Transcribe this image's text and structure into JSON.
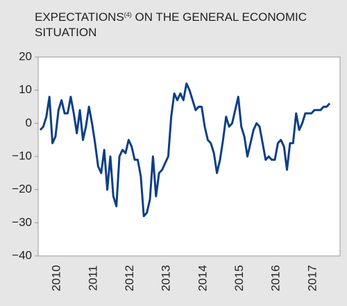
{
  "chart_data": {
    "type": "line",
    "title": "EXPECTATIONS",
    "title_note": "(4)",
    "title_rest": "ON THE GENERAL ECONOMIC SITUATION",
    "year_labels": [
      "2010",
      "2011",
      "2012",
      "2013",
      "2014",
      "2015",
      "2016",
      "2017"
    ],
    "series": [
      {
        "color": "#0d3f85",
        "values": [
          -2,
          -1,
          2,
          8,
          -6,
          -4,
          4,
          7,
          3,
          3,
          8,
          3,
          -3,
          4,
          -5,
          -1,
          5,
          0,
          -6,
          -13,
          -15,
          -8,
          -20,
          -10,
          -22,
          -25,
          -10,
          -8,
          -9,
          -5,
          -7,
          -11,
          -11,
          -16,
          -28,
          -27,
          -23,
          -10,
          -22,
          -15,
          -14,
          -12,
          -10,
          2,
          9,
          7,
          9,
          7,
          12,
          10,
          7,
          4,
          5,
          5,
          -1,
          -5,
          -6,
          -9,
          -15,
          -11,
          -5,
          2,
          -1,
          0,
          4,
          8,
          -1,
          -4,
          -10,
          -6,
          -2,
          0,
          -1,
          -6,
          -11,
          -10,
          -11,
          -11,
          -6,
          -5,
          -7,
          -14,
          -6,
          -6,
          3,
          -2,
          0,
          3,
          3,
          3,
          4,
          4,
          4,
          5,
          5,
          6
        ]
      }
    ],
    "ylim": [
      -40,
      20
    ],
    "yticks": [
      {
        "value": -40,
        "label": "−40"
      },
      {
        "value": -30,
        "label": "−30"
      },
      {
        "value": -20,
        "label": "−20"
      },
      {
        "value": -10,
        "label": "−10"
      },
      0,
      10,
      20
    ]
  }
}
